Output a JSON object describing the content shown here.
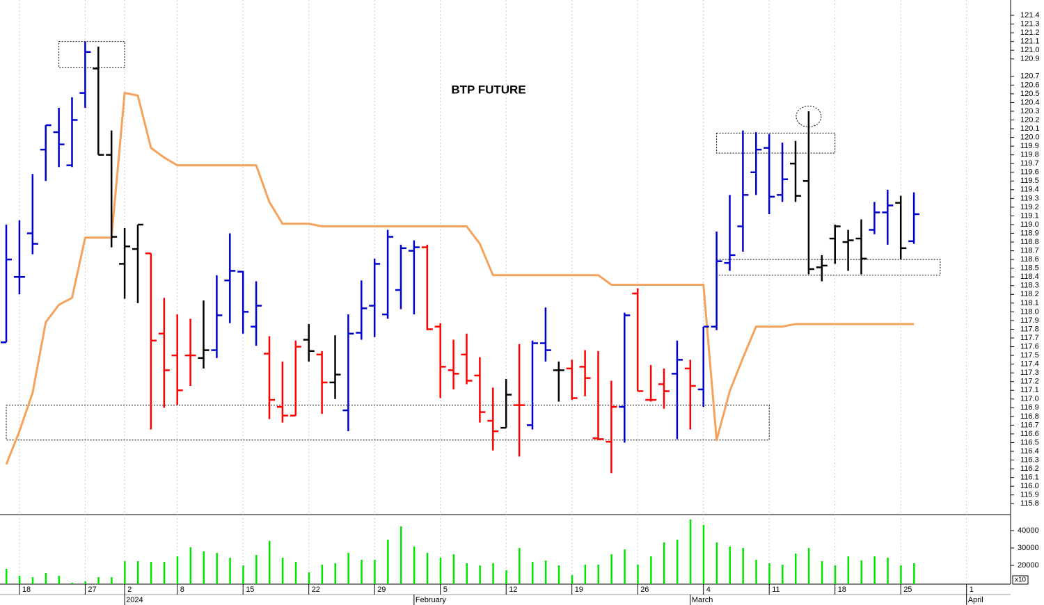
{
  "chart_data": {
    "type": "ohlc",
    "title": "BTP FUTURE",
    "categories": [
      null,
      "18",
      null,
      null,
      null,
      null,
      "27",
      null,
      null,
      "2",
      null,
      null,
      null,
      "8",
      null,
      null,
      null,
      null,
      "15",
      null,
      null,
      null,
      null,
      "22",
      null,
      null,
      null,
      null,
      "29",
      null,
      null,
      null,
      null,
      "5",
      null,
      null,
      null,
      null,
      "12",
      null,
      null,
      null,
      null,
      "19",
      null,
      null,
      null,
      null,
      "26",
      null,
      null,
      null,
      null,
      "4",
      null,
      null,
      null,
      null,
      "11",
      null,
      null,
      null,
      null,
      "18",
      null,
      null,
      null,
      null,
      "25",
      null,
      null,
      null,
      null,
      "1"
    ],
    "month_labels": [
      null,
      null,
      null,
      null,
      null,
      null,
      null,
      null,
      null,
      "2024",
      null,
      null,
      null,
      null,
      null,
      null,
      null,
      null,
      null,
      null,
      null,
      null,
      null,
      null,
      null,
      null,
      null,
      null,
      null,
      null,
      null,
      "February",
      null,
      null,
      null,
      null,
      null,
      null,
      null,
      null,
      null,
      null,
      null,
      null,
      null,
      null,
      null,
      null,
      null,
      null,
      null,
      null,
      "March",
      null,
      null,
      null,
      null,
      null,
      null,
      null,
      null,
      null,
      null,
      null,
      null,
      null,
      null,
      null,
      null,
      null,
      null,
      null,
      null,
      "April"
    ],
    "open": [
      117.65,
      118.4,
      118.9,
      119.86,
      120.06,
      119.68,
      120.51,
      120.79,
      119.8,
      118.55,
      118.72,
      118.67,
      117.75,
      117.5,
      117.5,
      117.47,
      117.56,
      118.36,
      118.46,
      117.83,
      117.52,
      116.91,
      116.81,
      117.68,
      117.51,
      117.19,
      116.87,
      117.76,
      118.07,
      117.97,
      118.25,
      118.7,
      118.74,
      117.83,
      117.33,
      117.51,
      117.27,
      116.75,
      116.67,
      116.93,
      116.7,
      117.64,
      117.33,
      117.35,
      117.37,
      116.55,
      116.51,
      116.91,
      118.21,
      116.99,
      117.17,
      117.29,
      117.35,
      117.11,
      117.83,
      118.56,
      118.98,
      119.6,
      119.88,
      119.34,
      119.7,
      119.5,
      118.51,
      118.84,
      118.8,
      118.84,
      118.94,
      119.14,
      119.25,
      118.81,
      null,
      null,
      null,
      null
    ],
    "high": [
      119.0,
      119.05,
      119.58,
      120.14,
      120.34,
      120.46,
      121.1,
      121.04,
      120.08,
      118.96,
      119.0,
      118.67,
      118.16,
      117.97,
      117.92,
      118.13,
      118.42,
      118.9,
      118.47,
      118.35,
      117.72,
      117.43,
      117.67,
      117.86,
      117.55,
      117.73,
      117.97,
      118.36,
      118.61,
      118.94,
      118.77,
      118.82,
      118.77,
      117.87,
      117.68,
      117.75,
      117.48,
      117.13,
      117.23,
      117.63,
      117.67,
      118.05,
      117.43,
      117.45,
      117.56,
      117.55,
      117.21,
      117.99,
      118.27,
      117.39,
      117.35,
      117.67,
      117.45,
      117.83,
      118.92,
      119.34,
      120.08,
      120.06,
      120.04,
      119.94,
      119.96,
      120.3,
      118.65,
      119.0,
      118.94,
      119.06,
      119.26,
      119.4,
      119.33,
      119.37,
      null,
      null,
      null,
      null
    ],
    "low": [
      117.65,
      118.2,
      118.66,
      119.5,
      119.66,
      119.66,
      120.34,
      119.8,
      118.74,
      118.15,
      118.1,
      116.65,
      116.9,
      116.93,
      117.15,
      117.35,
      117.47,
      117.87,
      117.75,
      117.61,
      116.77,
      116.73,
      116.81,
      117.43,
      116.83,
      117.0,
      116.63,
      117.68,
      117.71,
      117.92,
      118.03,
      117.97,
      117.79,
      117.01,
      117.11,
      117.17,
      116.73,
      116.41,
      116.67,
      116.34,
      116.65,
      117.43,
      116.97,
      116.99,
      117.03,
      116.53,
      116.15,
      116.5,
      117.09,
      116.97,
      116.89,
      116.54,
      116.65,
      116.91,
      117.79,
      118.47,
      118.69,
      119.34,
      119.12,
      119.26,
      119.26,
      118.43,
      118.35,
      118.55,
      118.47,
      118.43,
      118.89,
      118.77,
      118.6,
      118.78,
      null,
      null,
      null,
      null
    ],
    "close": [
      118.6,
      118.4,
      118.78,
      120.14,
      119.92,
      120.2,
      120.98,
      119.8,
      118.86,
      118.75,
      119.0,
      117.67,
      117.33,
      117.1,
      117.5,
      117.56,
      117.96,
      118.47,
      118.0,
      118.07,
      116.99,
      116.81,
      117.6,
      117.55,
      117.19,
      117.28,
      117.75,
      118.04,
      118.55,
      118.86,
      118.73,
      118.74,
      117.8,
      117.37,
      117.29,
      117.21,
      116.85,
      116.63,
      117.05,
      116.93,
      117.64,
      117.56,
      117.33,
      117.01,
      117.24,
      116.54,
      116.91,
      117.96,
      117.09,
      116.99,
      117.09,
      117.45,
      117.15,
      117.83,
      118.58,
      118.65,
      119.34,
      119.86,
      119.32,
      119.52,
      119.33,
      118.49,
      118.53,
      118.98,
      118.82,
      118.61,
      119.14,
      119.22,
      118.73,
      119.12,
      null,
      null,
      null,
      null
    ],
    "bar_colors": [
      "#0000cc",
      "#0000cc",
      "#0000cc",
      "#0000cc",
      "#0000cc",
      "#0000cc",
      "#0000cc",
      "#000000",
      "#000000",
      "#000000",
      "#000000",
      "#ff0000",
      "#ff0000",
      "#ff0000",
      "#ff0000",
      "#000000",
      "#0000cc",
      "#0000cc",
      "#0000cc",
      "#0000cc",
      "#ff0000",
      "#ff0000",
      "#ff0000",
      "#000000",
      "#ff0000",
      "#000000",
      "#0000cc",
      "#0000cc",
      "#0000cc",
      "#0000cc",
      "#0000cc",
      "#0000cc",
      "#ff0000",
      "#ff0000",
      "#ff0000",
      "#ff0000",
      "#ff0000",
      "#ff0000",
      "#000000",
      "#ff0000",
      "#0000cc",
      "#0000cc",
      "#000000",
      "#ff0000",
      "#ff0000",
      "#ff0000",
      "#ff0000",
      "#0000cc",
      "#ff0000",
      "#ff0000",
      "#ff0000",
      "#0000cc",
      "#ff0000",
      "#0000cc",
      "#0000cc",
      "#0000cc",
      "#0000cc",
      "#0000cc",
      "#0000cc",
      "#0000cc",
      "#000000",
      "#000000",
      "#000000",
      "#000000",
      "#000000",
      "#000000",
      "#0000cc",
      "#0000cc",
      "#000000",
      "#0000cc",
      null,
      null,
      null,
      null
    ],
    "trail": {
      "color": "#f5a25c",
      "values": [
        116.25,
        116.63,
        117.07,
        117.88,
        118.08,
        118.16,
        118.85,
        118.85,
        118.85,
        120.51,
        120.48,
        119.88,
        119.77,
        119.68,
        119.68,
        119.68,
        119.68,
        119.68,
        119.68,
        119.68,
        119.26,
        119.01,
        119.01,
        119.01,
        118.98,
        118.98,
        118.98,
        118.98,
        118.98,
        118.98,
        118.98,
        118.98,
        118.98,
        118.98,
        118.98,
        118.98,
        118.78,
        118.42,
        118.42,
        118.42,
        118.42,
        118.42,
        118.42,
        118.42,
        118.42,
        118.42,
        118.31,
        118.31,
        118.31,
        118.31,
        118.31,
        118.31,
        118.31,
        118.31,
        116.53,
        117.09,
        117.47,
        117.83,
        117.83,
        117.83,
        117.86,
        117.86,
        117.86,
        117.86,
        117.86,
        117.86,
        117.86,
        117.86,
        117.86,
        117.86,
        null,
        null,
        null,
        null
      ]
    },
    "ylim": [
      115.7,
      121.5
    ],
    "yticks": [
      115.8,
      115.9,
      {
        "value": 116,
        "label": "116.0"
      },
      116.1,
      116.2,
      116.3,
      116.4,
      116.5,
      116.6,
      116.7,
      116.8,
      116.9,
      {
        "value": 117,
        "label": "117.0"
      },
      117.1,
      117.2,
      117.3,
      117.4,
      117.5,
      117.6,
      117.7,
      117.8,
      117.9,
      {
        "value": 118,
        "label": "118.0"
      },
      118.1,
      118.2,
      118.3,
      118.4,
      118.5,
      118.6,
      118.7,
      118.8,
      118.9,
      {
        "value": 119,
        "label": "119.0"
      },
      119.1,
      119.2,
      119.3,
      119.4,
      119.5,
      119.6,
      119.7,
      119.8,
      119.9,
      {
        "value": 120,
        "label": "120.0"
      },
      120.1,
      120.2,
      120.3,
      120.4,
      120.5,
      120.6,
      120.7,
      120.9,
      {
        "value": 121,
        "label": "121.0"
      },
      121.1,
      121.2,
      121.3,
      121.4
    ],
    "boxes": [
      {
        "x": [
          4,
          9
        ],
        "y": [
          120.8,
          121.1
        ]
      },
      {
        "x": [
          0,
          58
        ],
        "y": [
          116.53,
          116.93
        ]
      },
      {
        "x": [
          54,
          63
        ],
        "y": [
          119.82,
          120.05
        ]
      },
      {
        "x": [
          54,
          71
        ],
        "y": [
          118.42,
          118.6
        ]
      }
    ],
    "circles": [
      {
        "x": 61,
        "y": 120.24
      }
    ],
    "volume": {
      "color": "#00e600",
      "note": "x10",
      "ylim": [
        9200,
        48400
      ],
      "yticks": [
        20000,
        30000,
        40000
      ],
      "values": [
        18000,
        14000,
        13200,
        15600,
        14000,
        10000,
        10800,
        13200,
        13200,
        22400,
        22400,
        22000,
        22000,
        25200,
        30400,
        28000,
        27200,
        24400,
        20000,
        26000,
        34000,
        24400,
        22000,
        16000,
        20400,
        21200,
        27200,
        23200,
        23200,
        34800,
        42400,
        30800,
        27200,
        24400,
        26400,
        21200,
        20000,
        21200,
        17200,
        30000,
        22000,
        22800,
        20000,
        14400,
        20400,
        20400,
        26400,
        29200,
        20400,
        25200,
        33200,
        34800,
        46400,
        43200,
        33200,
        30800,
        30000,
        23200,
        21200,
        20400,
        26800,
        30000,
        22400,
        20000,
        25200,
        22800,
        25200,
        24400,
        20000,
        21200,
        null,
        null,
        null,
        null
      ]
    }
  }
}
